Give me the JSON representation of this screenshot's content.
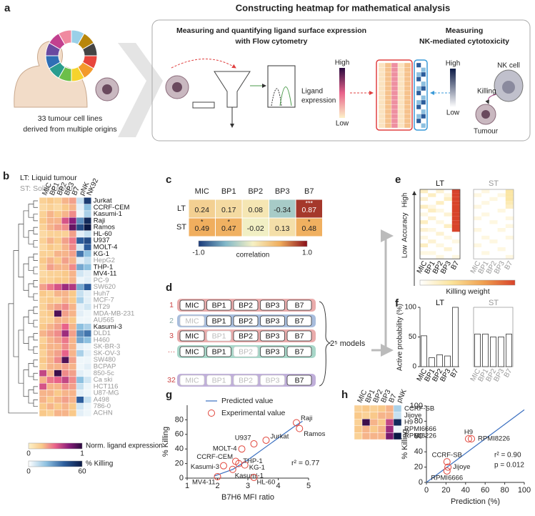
{
  "panel_a": {
    "label": "a",
    "title": "Constructing heatmap for mathematical analysis",
    "caption": [
      "33 tumour cell lines",
      "derived from multiple origins"
    ],
    "flow_title": [
      "Measuring and quantifying ligand surface expression",
      "with Flow cytometry"
    ],
    "nk_title": [
      "Measuring",
      "NK-mediated cytotoxicity"
    ],
    "ligand_legend": [
      "Ligand",
      "expression"
    ],
    "ligand_high": "High",
    "ligand_low": "Low",
    "nk_high": "High",
    "nk_low": "Low",
    "killing": "Killing",
    "nk_cell": "NK cell",
    "tumour": "Tumour"
  },
  "panel_b": {
    "label": "b",
    "legend_lt": "LT: Liquid tumour",
    "legend_st": "ST: Solid tumour",
    "columns": [
      "MIC",
      "BP1",
      "BP2",
      "BP3",
      "B7",
      "pNK",
      "NK92"
    ],
    "rows": [
      "Jurkat",
      "CCRF-CEM",
      "Kasumi-1",
      "Raji",
      "Ramos",
      "HL-60",
      "U937",
      "MOLT-4",
      "KG-1",
      "HepG2",
      "THP-1",
      "MV4-11",
      "PC-9",
      "SW620",
      "Huh7",
      "MCF-7",
      "HT29",
      "MDA-MB-231",
      "AU565",
      "Kasumi-3",
      "DLD1",
      "H460",
      "SK-BR-3",
      "SK-OV-3",
      "SW480",
      "BCPAP",
      "850-5c",
      "Ca ski",
      "HCT116",
      "U87-MG",
      "A498",
      "786-0",
      "ACHN"
    ],
    "liquid": [
      true,
      true,
      true,
      true,
      true,
      true,
      true,
      true,
      true,
      false,
      true,
      true,
      false,
      false,
      false,
      false,
      false,
      false,
      false,
      true,
      false,
      false,
      false,
      false,
      false,
      false,
      false,
      false,
      false,
      false,
      false,
      false,
      false
    ],
    "ligand": [
      [
        0.2,
        0.25,
        0.2,
        0.3,
        0.35
      ],
      [
        0.15,
        0.2,
        0.15,
        0.25,
        0.3
      ],
      [
        0.2,
        0.3,
        0.25,
        0.3,
        0.4
      ],
      [
        0.25,
        0.3,
        0.3,
        0.55,
        0.75
      ],
      [
        0.2,
        0.3,
        0.35,
        0.4,
        0.85
      ],
      [
        0.15,
        0.2,
        0.2,
        0.2,
        0.35
      ],
      [
        0.2,
        0.3,
        0.25,
        0.35,
        0.45
      ],
      [
        0.15,
        0.25,
        0.2,
        0.3,
        0.4
      ],
      [
        0.2,
        0.2,
        0.3,
        0.3,
        0.35
      ],
      [
        0.25,
        0.3,
        0.25,
        0.35,
        0.3
      ],
      [
        0.2,
        0.35,
        0.3,
        0.3,
        0.4
      ],
      [
        0.15,
        0.2,
        0.2,
        0.25,
        0.3
      ],
      [
        0.2,
        0.2,
        0.25,
        0.25,
        0.3
      ],
      [
        0.35,
        0.45,
        0.55,
        0.7,
        0.65
      ],
      [
        0.25,
        0.2,
        0.3,
        0.3,
        0.25
      ],
      [
        0.2,
        0.25,
        0.2,
        0.3,
        0.25
      ],
      [
        0.2,
        0.3,
        0.35,
        0.4,
        0.3
      ],
      [
        0.2,
        0.25,
        0.9,
        0.35,
        0.3
      ],
      [
        0.2,
        0.2,
        0.3,
        0.3,
        0.25
      ],
      [
        0.25,
        0.3,
        0.35,
        0.5,
        0.3
      ],
      [
        0.3,
        0.35,
        0.4,
        0.7,
        0.35
      ],
      [
        0.2,
        0.3,
        0.35,
        0.45,
        0.3
      ],
      [
        0.25,
        0.3,
        0.3,
        0.4,
        0.3
      ],
      [
        0.2,
        0.3,
        0.35,
        0.5,
        0.3
      ],
      [
        0.25,
        0.3,
        0.4,
        0.9,
        0.35
      ],
      [
        0.2,
        0.3,
        0.3,
        0.35,
        0.3
      ],
      [
        0.6,
        0.3,
        0.95,
        0.4,
        0.35
      ],
      [
        0.3,
        0.45,
        0.5,
        0.6,
        0.4
      ],
      [
        0.55,
        0.3,
        0.3,
        0.4,
        0.35
      ],
      [
        0.3,
        0.3,
        0.25,
        0.3,
        0.3
      ],
      [
        0.3,
        0.25,
        0.3,
        0.35,
        0.3
      ],
      [
        0.25,
        0.3,
        0.25,
        0.3,
        0.25
      ],
      [
        0.25,
        0.2,
        0.3,
        0.3,
        0.25
      ]
    ],
    "killing": [
      [
        10,
        50
      ],
      [
        5,
        20
      ],
      [
        3,
        15
      ],
      [
        30,
        55
      ],
      [
        45,
        60
      ],
      [
        5,
        10
      ],
      [
        40,
        45
      ],
      [
        8,
        40
      ],
      [
        35,
        20
      ],
      [
        5,
        10
      ],
      [
        25,
        20
      ],
      [
        8,
        5
      ],
      [
        3,
        5
      ],
      [
        25,
        40
      ],
      [
        10,
        5
      ],
      [
        15,
        5
      ],
      [
        5,
        8
      ],
      [
        5,
        3
      ],
      [
        3,
        3
      ],
      [
        20,
        15
      ],
      [
        30,
        35
      ],
      [
        25,
        20
      ],
      [
        5,
        3
      ],
      [
        15,
        5
      ],
      [
        3,
        3
      ],
      [
        3,
        5
      ],
      [
        5,
        3
      ],
      [
        20,
        8
      ],
      [
        10,
        3
      ],
      [
        5,
        3
      ],
      [
        40,
        10
      ],
      [
        8,
        3
      ],
      [
        5,
        3
      ]
    ],
    "ligand_colorbar": {
      "label": "Norm. ligand expression",
      "clim": [
        0,
        1
      ],
      "ticks": [
        0,
        1
      ],
      "colors": [
        "#fdf1c8",
        "#f9c98a",
        "#e8628a",
        "#8a1e7a",
        "#2a0a3f"
      ]
    },
    "killing_colorbar": {
      "label": "% Killing",
      "clim": [
        0,
        60
      ],
      "ticks": [
        0,
        60
      ],
      "colors": [
        "#ffffff",
        "#8dc0e0",
        "#2c5d9c",
        "#0b1a45"
      ]
    }
  },
  "panel_c": {
    "label": "c",
    "columns": [
      "MIC",
      "BP1",
      "BP2",
      "BP3",
      "B7"
    ],
    "rows": [
      "LT",
      "ST"
    ],
    "values": [
      [
        0.24,
        0.17,
        0.08,
        -0.34,
        0.87
      ],
      [
        0.49,
        0.47,
        -0.02,
        0.13,
        0.48
      ]
    ],
    "stars": [
      [
        null,
        null,
        null,
        null,
        "***"
      ],
      [
        "*",
        "*",
        null,
        null,
        "*"
      ]
    ],
    "colorbar": {
      "label": "correlation",
      "clim": [
        -1,
        1
      ],
      "ticks": [
        {
          "value": -1,
          "label": "-1.0"
        },
        {
          "value": 1,
          "label": "1.0"
        }
      ],
      "colors": [
        "#1a3a7a",
        "#82b9c9",
        "#f6f1c4",
        "#f0ad5c",
        "#8a0f1a"
      ]
    }
  },
  "panel_d": {
    "label": "d",
    "items": [
      "MIC",
      "BP1",
      "BP2",
      "BP3",
      "B7"
    ],
    "rows": [
      {
        "index": "1",
        "color": "#e8a3a3",
        "active": [
          true,
          true,
          true,
          true,
          true
        ]
      },
      {
        "index": "2",
        "color": "#9fb6d9",
        "active": [
          false,
          true,
          true,
          true,
          true
        ]
      },
      {
        "index": "3",
        "color": "#e8a3a3",
        "active": [
          true,
          false,
          true,
          true,
          true
        ]
      },
      {
        "index": "···",
        "color": "#9fd3c3",
        "active": [
          true,
          true,
          false,
          true,
          true
        ]
      },
      {
        "index": "32",
        "color": "#b9a6d6",
        "active": [
          false,
          false,
          false,
          false,
          true
        ]
      }
    ],
    "models_label": "2⁵ models"
  },
  "panel_e": {
    "label": "e",
    "titles": [
      "LT",
      "ST"
    ],
    "high": "High",
    "low": "Low",
    "ylabel": "Accuracy",
    "columns": [
      "MIC",
      "BP1",
      "BP2",
      "BP3",
      "B7"
    ],
    "colorbar_label": "Killing weight",
    "clim": [
      0,
      1
    ],
    "colors": [
      "#ffffff",
      "#fbe39a",
      "#f0a050",
      "#d8432a"
    ],
    "weights": [
      [
        [
          0.2,
          0,
          0.15,
          0,
          1
        ],
        [
          0,
          0.2,
          0,
          0.1,
          1
        ],
        [
          0.15,
          0,
          0,
          0.2,
          1
        ],
        [
          0,
          0,
          0.2,
          0,
          1
        ],
        [
          0.2,
          0.1,
          0,
          0,
          1
        ],
        [
          0,
          0.2,
          0.1,
          0,
          1
        ],
        [
          0.1,
          0,
          0,
          0.15,
          1
        ],
        [
          0,
          0.15,
          0,
          0,
          1
        ],
        [
          0.2,
          0,
          0.1,
          0,
          1
        ],
        [
          0,
          0,
          0,
          0.2,
          1
        ],
        [
          0.15,
          0.1,
          0,
          0,
          1
        ],
        [
          0,
          0,
          0.15,
          0,
          0
        ],
        [
          0.1,
          0,
          0,
          0.1,
          0
        ],
        [
          0,
          0.15,
          0,
          0,
          0.1
        ],
        [
          0.2,
          0,
          0.1,
          0,
          0
        ],
        [
          0,
          0,
          0,
          0.15,
          0
        ],
        [
          0.1,
          0.1,
          0,
          0,
          0
        ],
        [
          0,
          0,
          0.1,
          0,
          0.1
        ]
      ],
      [
        [
          0,
          0.1,
          0,
          0,
          0.3
        ],
        [
          0.1,
          0,
          0,
          0.1,
          0.3
        ],
        [
          0,
          0,
          0.1,
          0,
          0.3
        ],
        [
          0,
          0.1,
          0,
          0,
          0.25
        ],
        [
          0.1,
          0,
          0,
          0,
          0.2
        ],
        [
          0,
          0,
          0,
          0.1,
          0
        ],
        [
          0,
          0.1,
          0,
          0,
          0
        ],
        [
          0.1,
          0,
          0,
          0,
          0.1
        ],
        [
          0,
          0,
          0.1,
          0,
          0
        ],
        [
          0,
          0,
          0,
          0,
          0.1
        ],
        [
          0.1,
          0,
          0,
          0.1,
          0
        ],
        [
          0,
          0,
          0,
          0,
          0
        ],
        [
          0,
          0.1,
          0,
          0,
          0.1
        ],
        [
          0,
          0,
          0.1,
          0,
          0
        ],
        [
          0.1,
          0,
          0,
          0,
          0
        ],
        [
          0,
          0,
          0,
          0.1,
          0
        ],
        [
          0,
          0.1,
          0,
          0,
          0
        ],
        [
          0,
          0,
          0,
          0,
          0.1
        ]
      ]
    ]
  },
  "panel_f": {
    "label": "f",
    "type": "bar",
    "ylabel": "Active probability (%)",
    "categories": [
      "MIC",
      "BP1",
      "BP2",
      "BP3",
      "B7"
    ],
    "ylim": [
      0,
      100
    ],
    "yticks": [
      0,
      50,
      100
    ],
    "series": [
      {
        "name": "LT",
        "values": [
          52,
          15,
          20,
          18,
          100
        ]
      },
      {
        "name": "ST",
        "values": [
          55,
          55,
          50,
          50,
          55
        ]
      }
    ]
  },
  "panel_g": {
    "label": "g",
    "type": "scatter",
    "xlabel": "B7H6 MFI ratio",
    "ylabel": "% Killing",
    "xlim": [
      1,
      5
    ],
    "ylim": [
      0,
      100
    ],
    "xticks": [
      1,
      2,
      3,
      4,
      5
    ],
    "yticks": [
      0,
      20,
      40,
      60,
      80
    ],
    "fit": {
      "name": "Predicted value",
      "color": "#3a6fc0",
      "x": [
        1.9,
        2.5,
        3,
        3.5,
        4,
        4.5,
        4.8
      ],
      "y": [
        3,
        12,
        25,
        40,
        55,
        70,
        78
      ]
    },
    "points": {
      "name": "Experimental value",
      "color": "#e0443a",
      "labels": [
        "Raji",
        "Ramos",
        "Jurkat",
        "U937",
        "MOLT-4",
        "CCRF-CEM",
        "Kasumi-3",
        "THP-1",
        "KG-1",
        "Kasumi-1",
        "MV4-11",
        "HL-60"
      ],
      "x": [
        4.6,
        4.7,
        3.6,
        3.2,
        2.8,
        2.6,
        2.2,
        2.7,
        2.9,
        2.5,
        2.0,
        3.2
      ],
      "y": [
        76,
        68,
        52,
        47,
        40,
        23,
        17,
        20,
        18,
        12,
        2,
        1
      ]
    },
    "annotation": "r² = 0.77"
  },
  "panel_h": {
    "label": "h",
    "columns": [
      "MIC",
      "BP1",
      "BP2",
      "BP3",
      "B7",
      "pNK"
    ],
    "rows": [
      "CCRF-SB",
      "Jijoye",
      "H9",
      "RPMI6666",
      "RPMI8226"
    ],
    "ligand": [
      [
        0.2,
        0.25,
        0.2,
        0.25,
        0.3
      ],
      [
        0.25,
        0.2,
        0.25,
        0.3,
        0.3
      ],
      [
        0.2,
        0.95,
        0.3,
        0.25,
        0.6
      ],
      [
        0.25,
        0.3,
        0.25,
        0.3,
        0.7
      ],
      [
        0.2,
        0.3,
        0.3,
        0.3,
        0.8
      ]
    ],
    "killing": [
      15,
      10,
      55,
      3,
      60
    ],
    "scatter": {
      "type": "scatter",
      "xlabel": "Prediction (%)",
      "ylabel": "% Killing",
      "xlim": [
        0,
        100
      ],
      "ylim": [
        0,
        100
      ],
      "xticks": [
        0,
        20,
        40,
        60,
        80,
        100
      ],
      "yticks": [
        0,
        20,
        40,
        60,
        80,
        100
      ],
      "fit": {
        "color": "#3a6fc0",
        "x": [
          0,
          100
        ],
        "y": [
          0,
          95
        ]
      },
      "points": {
        "color": "#e0443a",
        "labels": [
          "CCRF-SB",
          "Jijoye",
          "H9",
          "RPMI6666",
          "RPMI8226"
        ],
        "x": [
          21,
          22,
          43,
          21,
          46
        ],
        "y": [
          27,
          20,
          57,
          15,
          57
        ]
      },
      "annotations": [
        "r² = 0.90",
        "p = 0.012"
      ]
    }
  }
}
